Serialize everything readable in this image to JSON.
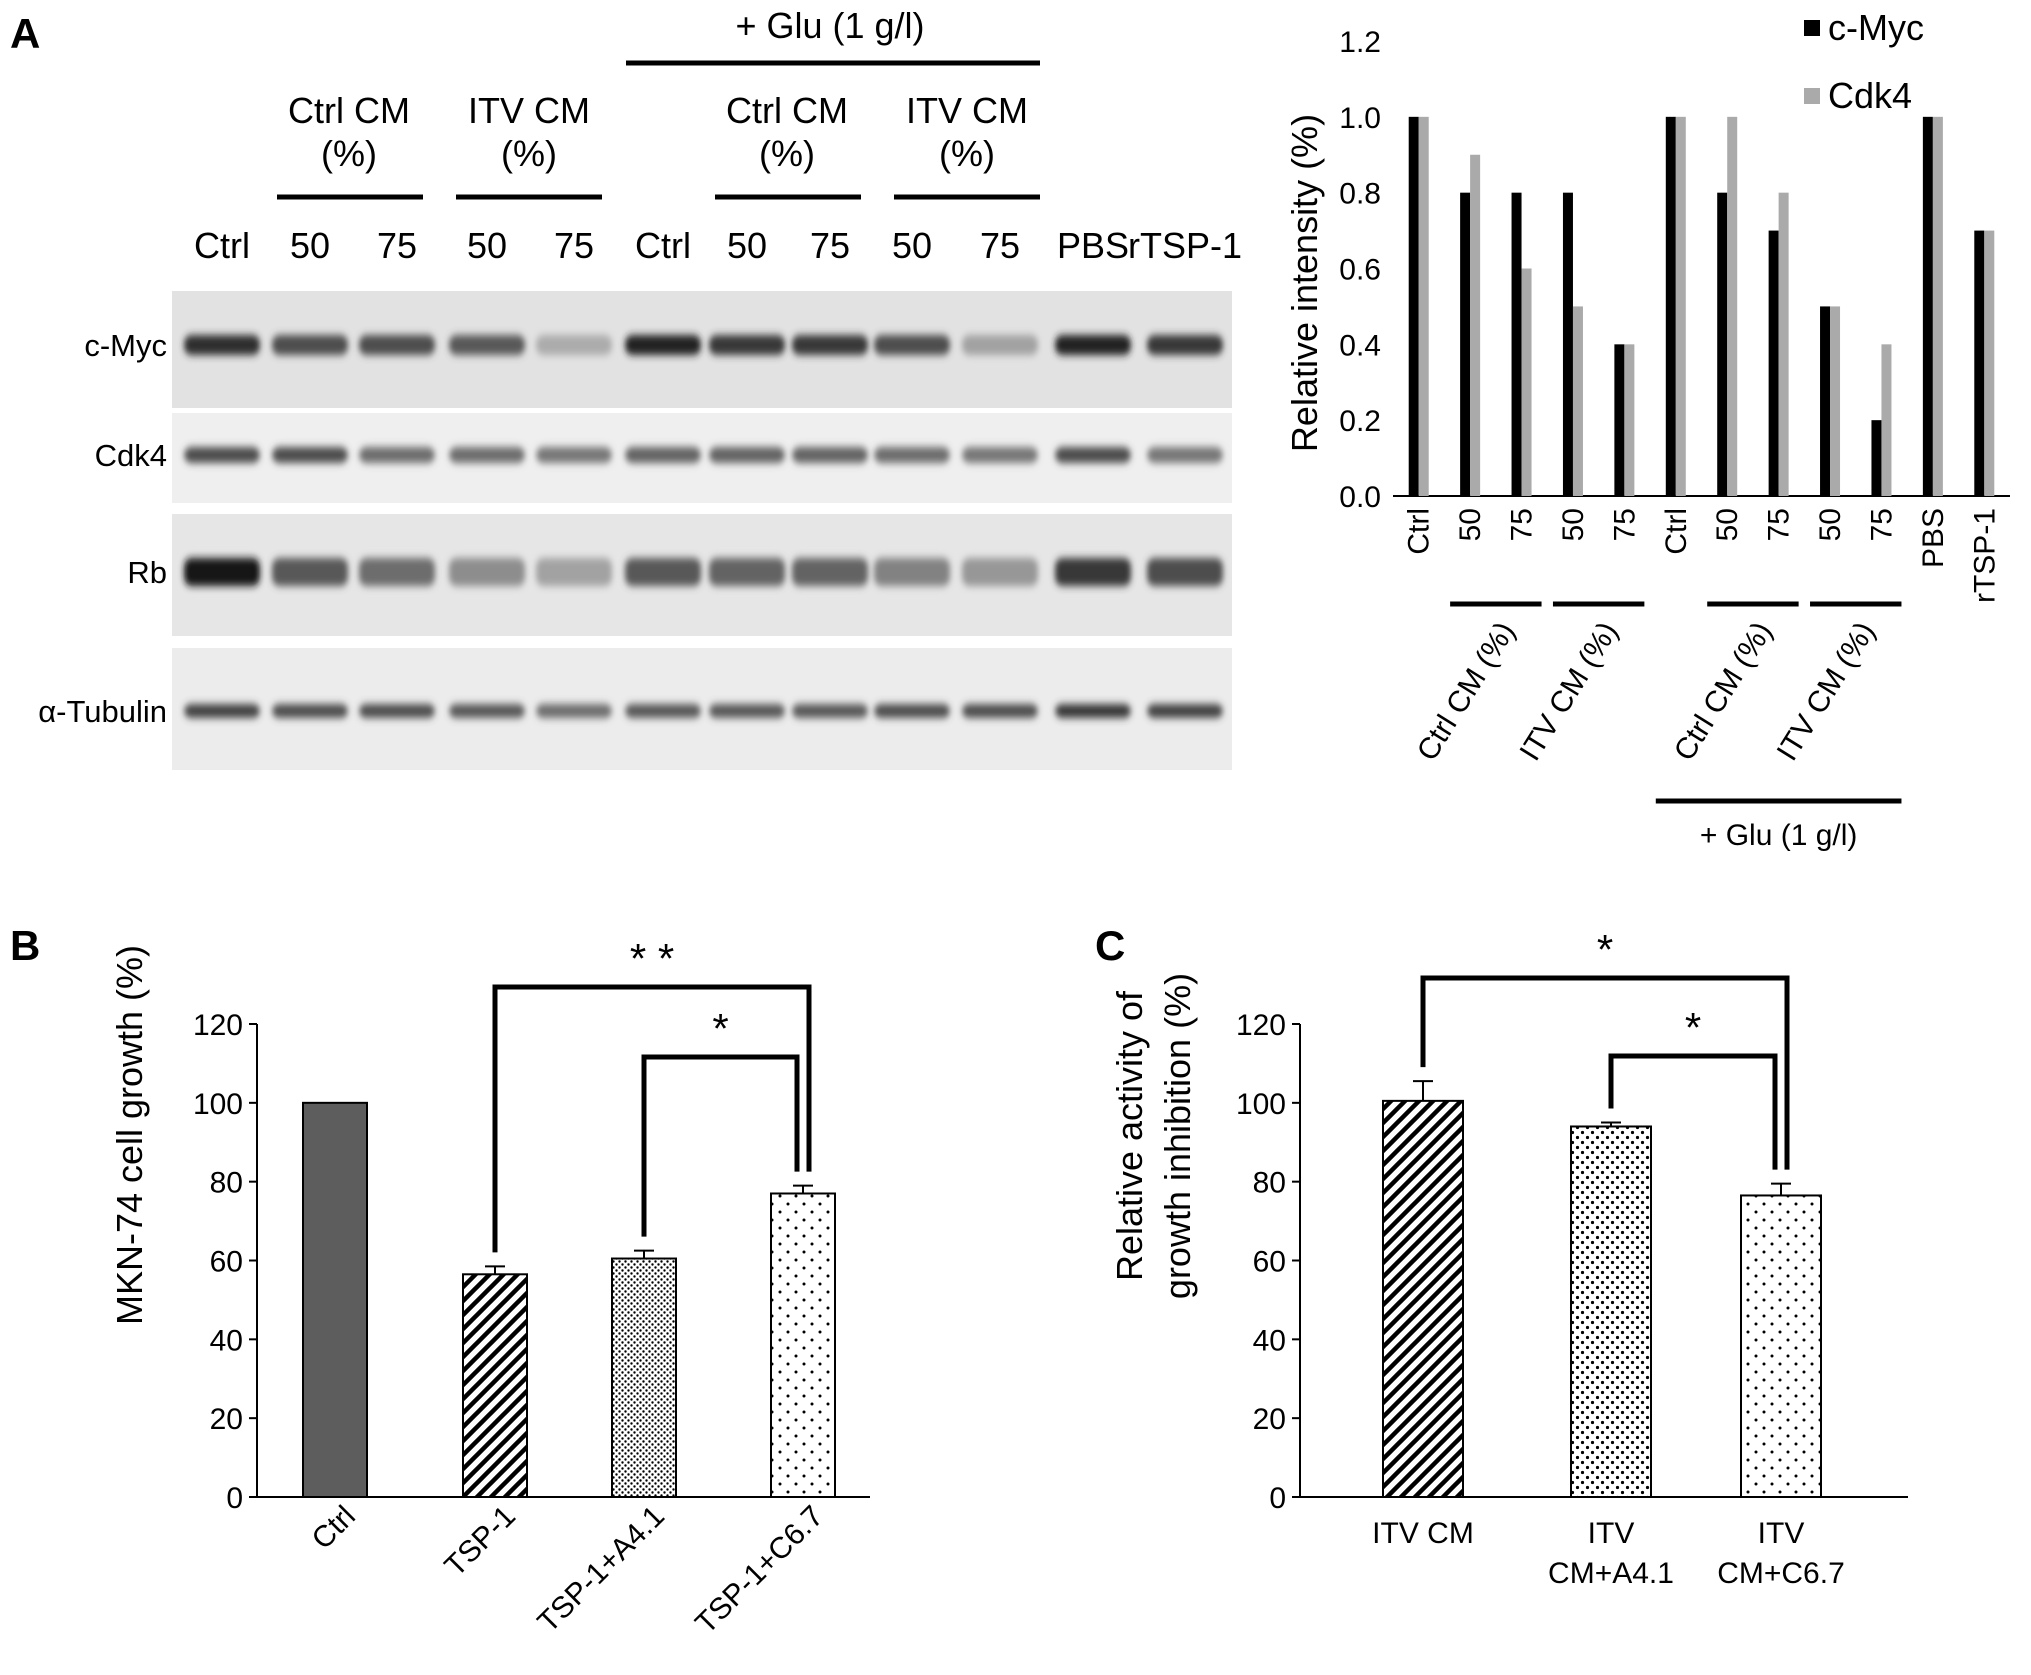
{
  "panel_labels": [
    "A",
    "B",
    "C"
  ],
  "blot": {
    "header_glu": "+ Glu (1 g/l)",
    "group_ctrl_cm": [
      "Ctrl CM",
      "(%)"
    ],
    "group_itv_cm": [
      "ITV CM",
      "(%)"
    ],
    "lanes": [
      "Ctrl",
      "50",
      "75",
      "50",
      "75",
      "Ctrl",
      "50",
      "75",
      "50",
      "75",
      "PBS",
      "rTSP-1"
    ],
    "rows": [
      "c-Myc",
      "Cdk4",
      "Rb",
      "α-Tubulin"
    ]
  },
  "chart_data": [
    {
      "id": "A-right",
      "type": "bar",
      "ylabel": "Relative intensity (%)",
      "ylim": [
        0,
        1.2
      ],
      "yticks": [
        "0.0",
        "0.2",
        "0.4",
        "0.6",
        "0.8",
        "1.0",
        "1.2"
      ],
      "categories": [
        "Ctrl",
        "50",
        "75",
        "50",
        "75",
        "Ctrl",
        "50",
        "75",
        "50",
        "75",
        "PBS",
        "rTSP-1"
      ],
      "series": [
        {
          "name": "c-Myc",
          "color": "#000000",
          "values": [
            1.0,
            0.8,
            0.8,
            0.8,
            0.4,
            1.0,
            0.8,
            0.7,
            0.5,
            0.2,
            1.0,
            0.7
          ]
        },
        {
          "name": "Cdk4",
          "color": "#aaaaaa",
          "values": [
            1.0,
            0.9,
            0.6,
            0.5,
            0.4,
            1.0,
            1.0,
            0.8,
            0.5,
            0.4,
            1.0,
            0.7
          ]
        }
      ],
      "group_labels": [
        "Ctrl CM (%)",
        "ITV CM (%)",
        "Ctrl CM (%)",
        "ITV CM (%)"
      ],
      "outer_label": "+ Glu (1 g/l)",
      "legend_position": "top-right"
    },
    {
      "id": "B",
      "type": "bar",
      "ylabel": "MKN-74 cell growth (%)",
      "ylim": [
        0,
        120
      ],
      "yticks": [
        "0",
        "20",
        "40",
        "60",
        "80",
        "100",
        "120"
      ],
      "categories": [
        "Ctrl",
        "TSP-1",
        "TSP-1+A4.1",
        "TSP-1+C6.7"
      ],
      "values": [
        100,
        56.5,
        60.5,
        77
      ],
      "errors": [
        0,
        2,
        2,
        2
      ],
      "fills": [
        "solid-dark",
        "diagonal-hatch",
        "fine-dots",
        "sparse-dots"
      ],
      "significance": [
        {
          "from": "TSP-1",
          "to": "TSP-1+C6.7",
          "label": "* *"
        },
        {
          "from": "TSP-1+A4.1",
          "to": "TSP-1+C6.7",
          "label": "*"
        }
      ]
    },
    {
      "id": "C",
      "type": "bar",
      "ylabel": [
        "Relative activity of",
        "growth inhibition (%)"
      ],
      "ylim": [
        0,
        120
      ],
      "yticks": [
        "0",
        "20",
        "40",
        "60",
        "80",
        "100",
        "120"
      ],
      "categories": [
        [
          "ITV CM"
        ],
        [
          "ITV",
          "CM+A4.1"
        ],
        [
          "ITV",
          "CM+C6.7"
        ]
      ],
      "values": [
        100.5,
        94,
        76.5
      ],
      "errors": [
        5,
        1,
        3
      ],
      "fills": [
        "diagonal-hatch",
        "dots",
        "sparse-dots"
      ],
      "significance": [
        {
          "from": "ITV CM",
          "to": "ITV CM+C6.7",
          "label": "*"
        },
        {
          "from": "ITV CM+A4.1",
          "to": "ITV CM+C6.7",
          "label": "*"
        }
      ]
    }
  ]
}
